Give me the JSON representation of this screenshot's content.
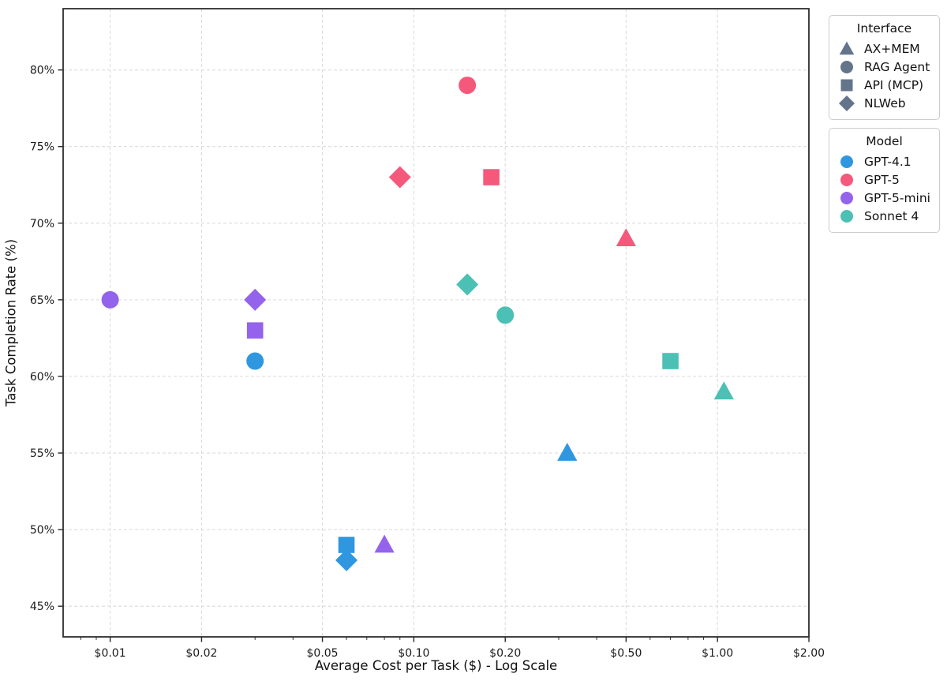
{
  "chart_data": {
    "type": "scatter",
    "title": "",
    "xlabel": "Average Cost per Task ($) - Log Scale",
    "ylabel": "Task Completion Rate (%)",
    "x_scale": "log",
    "xlim": [
      0.007,
      2.0
    ],
    "ylim": [
      43,
      84
    ],
    "grid": true,
    "grid_style": "dashed",
    "x_ticks": [
      {
        "value": 0.01,
        "label": "$0.01"
      },
      {
        "value": 0.02,
        "label": "$0.02"
      },
      {
        "value": 0.05,
        "label": "$0.05"
      },
      {
        "value": 0.1,
        "label": "$0.10"
      },
      {
        "value": 0.2,
        "label": "$0.20"
      },
      {
        "value": 0.5,
        "label": "$0.50"
      },
      {
        "value": 1.0,
        "label": "$1.00"
      },
      {
        "value": 2.0,
        "label": "$2.00"
      }
    ],
    "x_minor_ticks": [
      0.008,
      0.009,
      0.03,
      0.04,
      0.06,
      0.07,
      0.08,
      0.09,
      0.3,
      0.4,
      0.6,
      0.7,
      0.8,
      0.9
    ],
    "y_ticks": [
      {
        "value": 45,
        "label": "45%"
      },
      {
        "value": 50,
        "label": "50%"
      },
      {
        "value": 55,
        "label": "55%"
      },
      {
        "value": 60,
        "label": "60%"
      },
      {
        "value": 65,
        "label": "65%"
      },
      {
        "value": 70,
        "label": "70%"
      },
      {
        "value": 75,
        "label": "75%"
      },
      {
        "value": 80,
        "label": "80%"
      }
    ],
    "marker_by_interface": {
      "AX+MEM": "triangle",
      "RAG Agent": "circle",
      "API (MCP)": "square",
      "NLWeb": "diamond"
    },
    "color_by_model": {
      "GPT-4.1": "#2F97E0",
      "GPT-5": "#F4597C",
      "GPT-5-mini": "#9463EB",
      "Sonnet 4": "#4CC0B4"
    },
    "draw_order_interfaces": [
      "AX+MEM",
      "RAG Agent",
      "API (MCP)",
      "NLWeb"
    ],
    "points": [
      {
        "model": "GPT-4.1",
        "interface": "AX+MEM",
        "cost_usd": 0.32,
        "completion_rate_pct": 55
      },
      {
        "model": "GPT-4.1",
        "interface": "RAG Agent",
        "cost_usd": 0.03,
        "completion_rate_pct": 61
      },
      {
        "model": "GPT-4.1",
        "interface": "API (MCP)",
        "cost_usd": 0.06,
        "completion_rate_pct": 49
      },
      {
        "model": "GPT-4.1",
        "interface": "NLWeb",
        "cost_usd": 0.06,
        "completion_rate_pct": 48
      },
      {
        "model": "GPT-5",
        "interface": "AX+MEM",
        "cost_usd": 0.5,
        "completion_rate_pct": 69
      },
      {
        "model": "GPT-5",
        "interface": "RAG Agent",
        "cost_usd": 0.15,
        "completion_rate_pct": 79
      },
      {
        "model": "GPT-5",
        "interface": "API (MCP)",
        "cost_usd": 0.18,
        "completion_rate_pct": 73
      },
      {
        "model": "GPT-5",
        "interface": "NLWeb",
        "cost_usd": 0.09,
        "completion_rate_pct": 73
      },
      {
        "model": "GPT-5-mini",
        "interface": "AX+MEM",
        "cost_usd": 0.08,
        "completion_rate_pct": 49
      },
      {
        "model": "GPT-5-mini",
        "interface": "RAG Agent",
        "cost_usd": 0.01,
        "completion_rate_pct": 65
      },
      {
        "model": "GPT-5-mini",
        "interface": "API (MCP)",
        "cost_usd": 0.03,
        "completion_rate_pct": 63
      },
      {
        "model": "GPT-5-mini",
        "interface": "NLWeb",
        "cost_usd": 0.03,
        "completion_rate_pct": 65
      },
      {
        "model": "Sonnet 4",
        "interface": "AX+MEM",
        "cost_usd": 1.05,
        "completion_rate_pct": 59
      },
      {
        "model": "Sonnet 4",
        "interface": "RAG Agent",
        "cost_usd": 0.2,
        "completion_rate_pct": 64
      },
      {
        "model": "Sonnet 4",
        "interface": "API (MCP)",
        "cost_usd": 0.7,
        "completion_rate_pct": 61
      },
      {
        "model": "Sonnet 4",
        "interface": "NLWeb",
        "cost_usd": 0.15,
        "completion_rate_pct": 66
      }
    ]
  },
  "legends": {
    "interface": {
      "title": "Interface",
      "marker_color": "#64748B",
      "items": [
        {
          "label": "AX+MEM",
          "marker": "triangle"
        },
        {
          "label": "RAG Agent",
          "marker": "circle"
        },
        {
          "label": "API (MCP)",
          "marker": "square"
        },
        {
          "label": "NLWeb",
          "marker": "diamond"
        }
      ]
    },
    "model": {
      "title": "Model",
      "marker": "circle",
      "items": [
        {
          "label": "GPT-4.1",
          "color": "#2F97E0"
        },
        {
          "label": "GPT-5",
          "color": "#F4597C"
        },
        {
          "label": "GPT-5-mini",
          "color": "#9463EB"
        },
        {
          "label": "Sonnet 4",
          "color": "#4CC0B4"
        }
      ]
    }
  },
  "styles": {
    "background": "#FFFFFF",
    "grid_color": "#DCDCDC",
    "spine_color": "#2E2E2E",
    "tick_color": "#262626",
    "text_color": "#1A1A1A"
  }
}
